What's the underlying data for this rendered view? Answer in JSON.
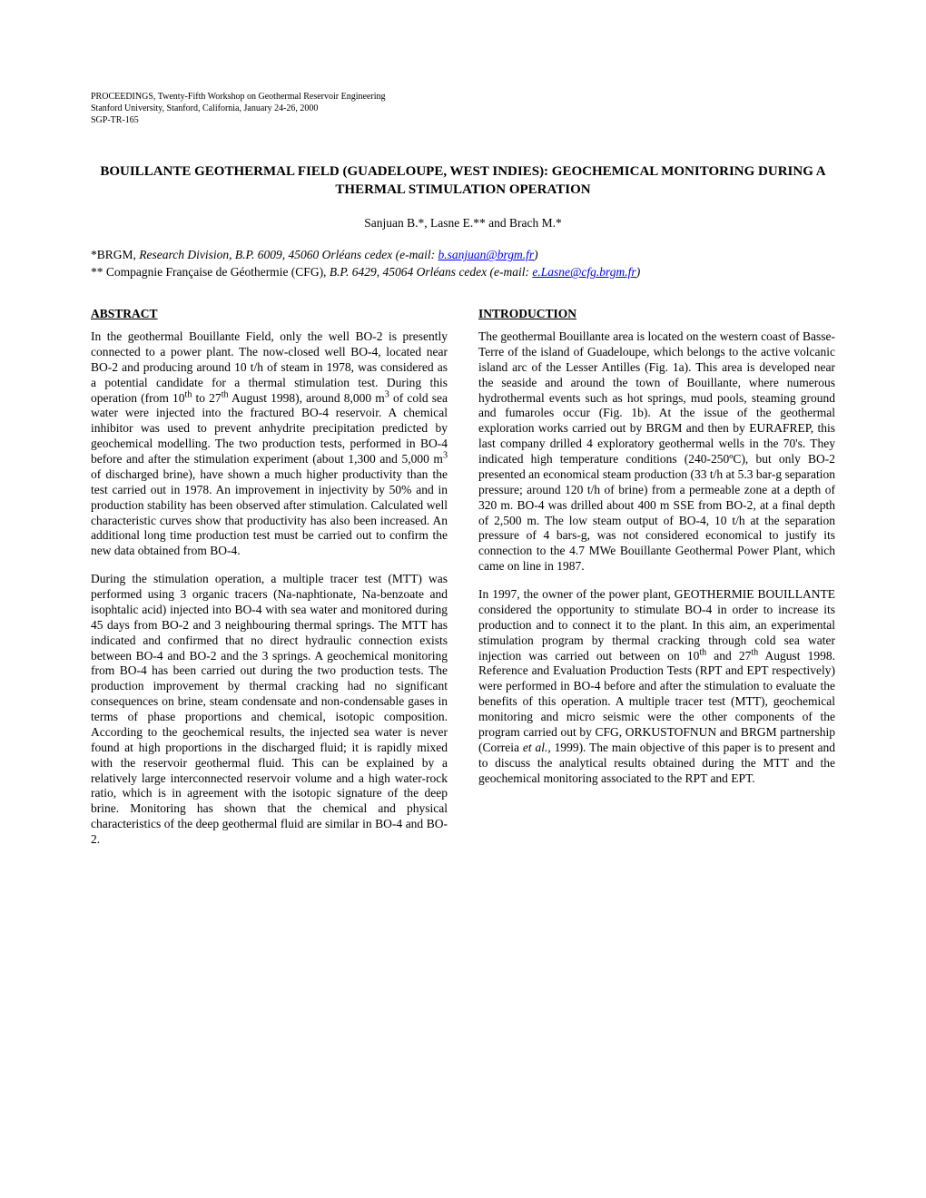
{
  "header": {
    "line1": "PROCEEDINGS, Twenty-Fifth Workshop on Geothermal Reservoir Engineering",
    "line2": "Stanford University, Stanford, California, January 24-26, 2000",
    "line3": "SGP-TR-165"
  },
  "title": "BOUILLANTE GEOTHERMAL FIELD (GUADELOUPE, WEST INDIES): GEOCHEMICAL MONITORING DURING A THERMAL STIMULATION OPERATION",
  "authors": "Sanjuan B.*, Lasne E.** and Brach M.*",
  "affiliations": {
    "aff1_prefix": "*BRGM, ",
    "aff1_italic": "Research Division, B.P. 6009, 45060 Orléans cedex (e-mail: ",
    "aff1_email": "b.sanjuan@brgm.fr",
    "aff1_close": ")",
    "aff2_prefix": "** Compagnie Française de Géothermie (CFG), ",
    "aff2_italic": "B.P. 6429, 45064 Orléans cedex (e-mail: ",
    "aff2_email": "e.Lasne@cfg.brgm.fr",
    "aff2_close": ")"
  },
  "abstract": {
    "heading": "ABSTRACT",
    "p1_a": "In the geothermal Bouillante Field, only the well BO-2 is presently connected to a power plant. The now-closed well BO-4, located near BO-2 and producing around 10 t/h of steam in 1978, was considered as a potential candidate for a thermal stimulation test. During this operation (from 10",
    "p1_b": " to 27",
    "p1_c": " August 1998), around 8,000 m",
    "p1_d": " of cold sea water were injected into the fractured BO-4 reservoir. A chemical inhibitor was used to prevent anhydrite precipitation predicted by geochemical modelling. The two production tests, performed in BO-4 before and after the stimulation experiment (about 1,300 and 5,000 m",
    "p1_e": " of discharged brine), have shown a much higher productivity than the test carried out in 1978. An improvement in injectivity by 50% and in production stability has been observed after stimulation. Calculated well characteristic curves show that productivity has also been increased. An additional long time production test must be carried out to confirm the new data obtained from BO-4.",
    "p2": "During the stimulation operation, a multiple tracer test (MTT) was performed using 3 organic tracers (Na-naphtionate, Na-benzoate and isophtalic acid) injected into BO-4 with sea water and monitored during 45 days from BO-2 and 3 neighbouring thermal springs. The MTT has indicated and confirmed that no direct hydraulic connection exists between BO-4 and BO-2 and the 3 springs. A geochemical monitoring from BO-4 has been carried out during the two production tests. The production improvement by thermal cracking had no significant consequences on brine, steam condensate and non-condensable gases in terms of phase proportions and chemical, isotopic composition. According to the geochemical results, the injected sea water is never found at high proportions in the discharged fluid; it is rapidly mixed with the reservoir geothermal fluid. This can be explained by a relatively large interconnected reservoir volume and a high water-rock ratio, which is in agreement with the isotopic signature of the deep brine. Monitoring has shown that the chemical and physical characteristics of the deep geothermal fluid are similar in BO-4 and BO-2."
  },
  "introduction": {
    "heading": "INTRODUCTION",
    "p1": "The geothermal Bouillante area is located on the western coast of Basse-Terre of the island of Guadeloupe, which belongs to the active volcanic island arc of the Lesser Antilles (Fig. 1a). This area is developed near the seaside and around the town of Bouillante, where numerous hydrothermal events such as hot springs, mud pools, steaming ground and fumaroles occur (Fig. 1b). At the issue of the geothermal exploration works carried out by BRGM and then by EURAFREP,  this last company drilled 4 exploratory geothermal wells in the 70's. They indicated high temperature conditions (240-250ºC), but only BO-2 presented an economical steam production (33 t/h at 5.3 bar-g separation pressure; around 120 t/h of brine) from a permeable zone at a depth of 320 m. BO-4 was drilled about 400 m SSE from BO-2, at a final depth of 2,500 m. The low steam output of BO-4, 10 t/h at the separation pressure of 4 bars-g, was not considered economical to justify its connection to the 4.7 MWe Bouillante Geothermal Power Plant, which came on line in 1987.",
    "p2_a": "In 1997, the owner of the power plant, GEOTHERMIE BOUILLANTE considered the opportunity to stimulate BO-4 in order to increase its production and to connect it to the plant. In this aim, an experimental stimulation program by thermal cracking through cold sea water injection was carried out between on 10",
    "p2_b": " and 27",
    "p2_c": " August 1998. Reference and Evaluation Production Tests (RPT and EPT respectively) were performed in BO-4 before and after the stimulation to evaluate the benefits of this operation. A multiple tracer test (MTT), geochemical monitoring and micro seismic were the other components of the program carried out by CFG, ORKUSTOFNUN and BRGM partnership (Correia ",
    "p2_d": "et al.",
    "p2_e": ", 1999). The main objective of this paper is to present and to discuss the analytical results obtained during the MTT and the geochemical monitoring associated to the RPT and EPT."
  },
  "superscripts": {
    "th": "th",
    "three": "3"
  }
}
